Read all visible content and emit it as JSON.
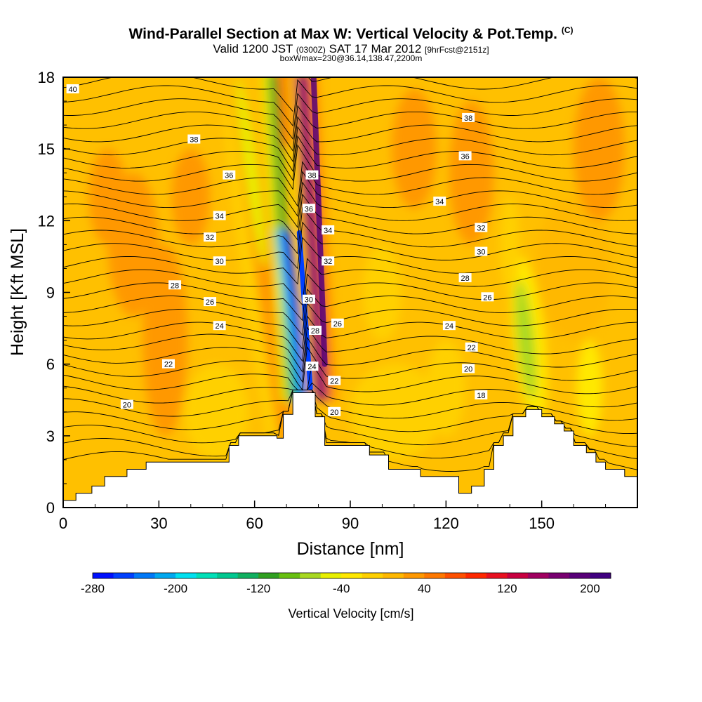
{
  "title": {
    "main": "Wind-Parallel Section at Max W: Vertical Velocity & Pot.Temp.",
    "copyright": "(C)",
    "valid_a": "Valid 1200 JST",
    "valid_z": "(0300Z)",
    "valid_b": "SAT 17 Mar 2012",
    "fcst": "[9hrFcst@2151z]",
    "box": "boxWmax=230@36.14,138.47,2200m"
  },
  "chart_data": {
    "type": "heatmap",
    "xlabel": "Distance [nm]",
    "ylabel": "Height [Kft MSL]",
    "xlim": [
      0,
      180
    ],
    "ylim": [
      0,
      18
    ],
    "xticks": [
      0,
      30,
      60,
      90,
      120,
      150
    ],
    "yticks": [
      0,
      3,
      6,
      9,
      12,
      15,
      18
    ],
    "colorbar": {
      "title": "Vertical Velocity [cm/s]",
      "ticks": [
        -280,
        -200,
        -120,
        -40,
        40,
        120,
        200
      ],
      "min": -280,
      "max": 220,
      "step": 20,
      "colors": [
        "#0010ff",
        "#0040ff",
        "#0078f8",
        "#00a8f0",
        "#00e0f0",
        "#00e0b8",
        "#00c890",
        "#10b060",
        "#30a020",
        "#68c010",
        "#a8d820",
        "#e8f000",
        "#ffe800",
        "#ffd000",
        "#ffb800",
        "#ff9800",
        "#ff7800",
        "#ff5000",
        "#ff2800",
        "#e81020",
        "#c80040",
        "#a00060",
        "#780070",
        "#580078",
        "#400080"
      ]
    },
    "terrain": [
      [
        0,
        0.3
      ],
      [
        4,
        0.3
      ],
      [
        4,
        0.6
      ],
      [
        9,
        0.6
      ],
      [
        9,
        0.9
      ],
      [
        13,
        0.9
      ],
      [
        13,
        1.3
      ],
      [
        20,
        1.3
      ],
      [
        20,
        1.6
      ],
      [
        26,
        1.6
      ],
      [
        26,
        1.9
      ],
      [
        52,
        1.9
      ],
      [
        52,
        2.6
      ],
      [
        55,
        2.6
      ],
      [
        55,
        3.0
      ],
      [
        67,
        3.0
      ],
      [
        67,
        2.9
      ],
      [
        69,
        2.9
      ],
      [
        69,
        3.9
      ],
      [
        72,
        3.9
      ],
      [
        72,
        4.8
      ],
      [
        79,
        4.8
      ],
      [
        79,
        3.8
      ],
      [
        82,
        3.8
      ],
      [
        82,
        2.6
      ],
      [
        96,
        2.6
      ],
      [
        96,
        2.2
      ],
      [
        102,
        2.2
      ],
      [
        102,
        1.6
      ],
      [
        112,
        1.6
      ],
      [
        112,
        1.3
      ],
      [
        124,
        1.3
      ],
      [
        124,
        0.6
      ],
      [
        128,
        0.6
      ],
      [
        128,
        0.9
      ],
      [
        132,
        0.9
      ],
      [
        132,
        1.6
      ],
      [
        135,
        1.6
      ],
      [
        135,
        2.6
      ],
      [
        138,
        2.6
      ],
      [
        138,
        3.0
      ],
      [
        141,
        3.0
      ],
      [
        141,
        3.8
      ],
      [
        145,
        3.8
      ],
      [
        145,
        4.1
      ],
      [
        150,
        4.1
      ],
      [
        150,
        3.8
      ],
      [
        154,
        3.8
      ],
      [
        154,
        3.5
      ],
      [
        157,
        3.5
      ],
      [
        157,
        3.2
      ],
      [
        160,
        3.2
      ],
      [
        160,
        2.6
      ],
      [
        164,
        2.6
      ],
      [
        164,
        2.3
      ],
      [
        167,
        2.3
      ],
      [
        167,
        1.9
      ],
      [
        170,
        1.9
      ],
      [
        170,
        1.6
      ],
      [
        176,
        1.6
      ],
      [
        176,
        1.3
      ],
      [
        180,
        1.3
      ],
      [
        180,
        0
      ],
      [
        0,
        0
      ]
    ],
    "contour_labels": [
      {
        "x": 3,
        "y": 17.5,
        "text": "40"
      },
      {
        "x": 41,
        "y": 15.4,
        "text": "38"
      },
      {
        "x": 52,
        "y": 13.9,
        "text": "36"
      },
      {
        "x": 49,
        "y": 12.2,
        "text": "34"
      },
      {
        "x": 46,
        "y": 11.3,
        "text": "32"
      },
      {
        "x": 49,
        "y": 10.3,
        "text": "30"
      },
      {
        "x": 35,
        "y": 9.3,
        "text": "28"
      },
      {
        "x": 46,
        "y": 8.6,
        "text": "26"
      },
      {
        "x": 49,
        "y": 7.6,
        "text": "24"
      },
      {
        "x": 33,
        "y": 6.0,
        "text": "22"
      },
      {
        "x": 20,
        "y": 4.3,
        "text": "20"
      },
      {
        "x": 78,
        "y": 13.9,
        "text": "38"
      },
      {
        "x": 77,
        "y": 12.5,
        "text": "36"
      },
      {
        "x": 83,
        "y": 11.6,
        "text": "34"
      },
      {
        "x": 83,
        "y": 10.3,
        "text": "32"
      },
      {
        "x": 77,
        "y": 8.7,
        "text": "30"
      },
      {
        "x": 79,
        "y": 7.4,
        "text": "28"
      },
      {
        "x": 86,
        "y": 7.7,
        "text": "26"
      },
      {
        "x": 78,
        "y": 5.9,
        "text": "24"
      },
      {
        "x": 85,
        "y": 5.3,
        "text": "22"
      },
      {
        "x": 85,
        "y": 4.0,
        "text": "20"
      },
      {
        "x": 127,
        "y": 16.3,
        "text": "38"
      },
      {
        "x": 126,
        "y": 14.7,
        "text": "36"
      },
      {
        "x": 118,
        "y": 12.8,
        "text": "34"
      },
      {
        "x": 131,
        "y": 11.7,
        "text": "32"
      },
      {
        "x": 131,
        "y": 10.7,
        "text": "30"
      },
      {
        "x": 126,
        "y": 9.6,
        "text": "28"
      },
      {
        "x": 133,
        "y": 8.8,
        "text": "26"
      },
      {
        "x": 121,
        "y": 7.6,
        "text": "24"
      },
      {
        "x": 128,
        "y": 6.7,
        "text": "22"
      },
      {
        "x": 127,
        "y": 5.8,
        "text": "20"
      },
      {
        "x": 131,
        "y": 4.7,
        "text": "18"
      }
    ]
  }
}
